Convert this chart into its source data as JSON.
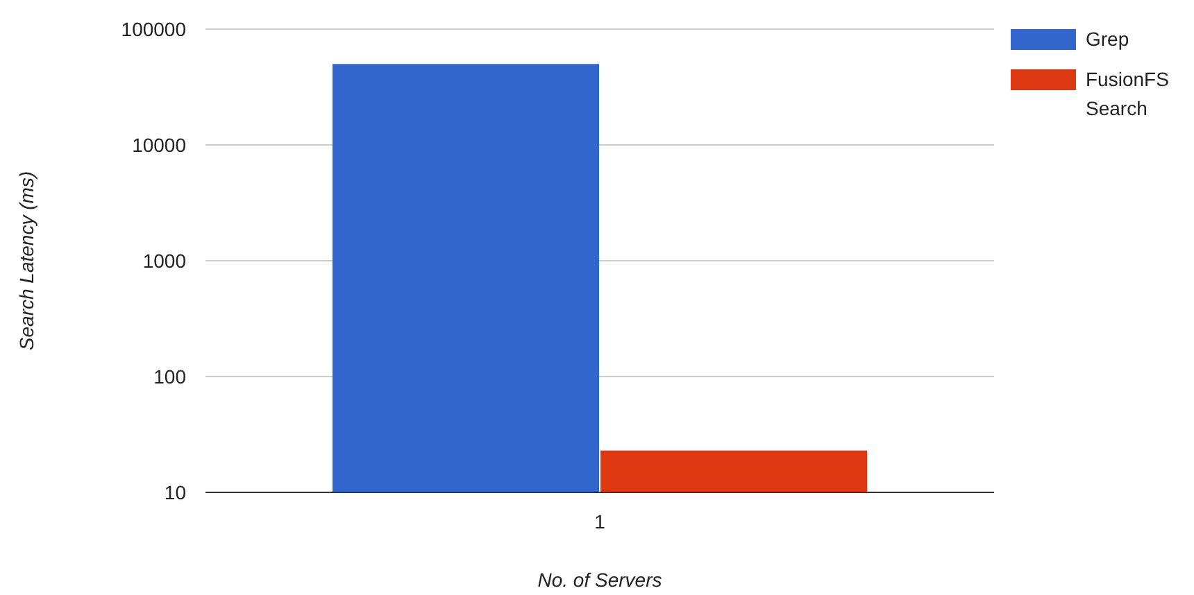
{
  "chart_data": {
    "type": "bar",
    "xlabel": "No. of Servers",
    "ylabel": "Search Latency (ms)",
    "categories": [
      "1"
    ],
    "series": [
      {
        "name": "Grep",
        "color": "#3366cc",
        "values": [
          50000
        ]
      },
      {
        "name": "FusionFS Search",
        "color": "#dc3912",
        "values": [
          23
        ]
      }
    ],
    "log": true,
    "ylim": [
      10,
      100000
    ],
    "yticks": [
      10,
      100,
      1000,
      10000,
      100000
    ],
    "grid": "y",
    "legend": "top right"
  }
}
